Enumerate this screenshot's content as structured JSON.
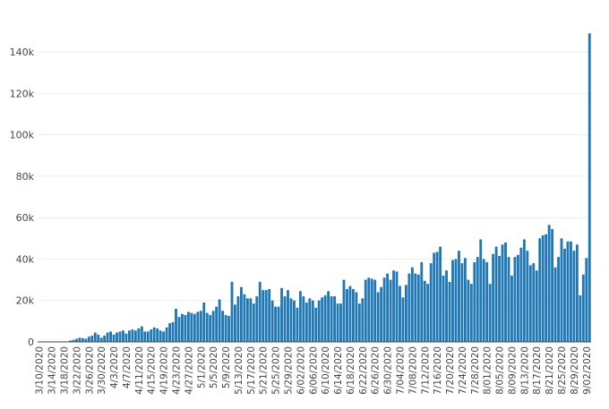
{
  "chart_data": {
    "type": "bar",
    "title": "",
    "xlabel": "",
    "ylabel": "",
    "bar_color": "#1f77b4",
    "ylim": [
      0,
      150000
    ],
    "yticks": [
      0,
      20000,
      40000,
      60000,
      80000,
      100000,
      120000,
      140000
    ],
    "ytick_labels": [
      "0",
      "20k",
      "40k",
      "60k",
      "80k",
      "100k",
      "120k",
      "140k"
    ],
    "grid": true,
    "legend": "none",
    "xtick_labels": [
      "3/10/2020",
      "3/14/2020",
      "3/18/2020",
      "3/22/2020",
      "3/26/2020",
      "3/30/2020",
      "4/3/2020",
      "4/7/2020",
      "4/11/2020",
      "4/15/2020",
      "4/19/2020",
      "4/23/2020",
      "4/27/2020",
      "5/1/2020",
      "5/5/2020",
      "5/9/2020",
      "5/13/2020",
      "5/17/2020",
      "5/21/2020",
      "5/25/2020",
      "5/29/2020",
      "6/02/2020",
      "6/06/2020",
      "6/10/2020",
      "6/14/2020",
      "6/18/2020",
      "6/22/2020",
      "6/26/2020",
      "6/30/2020",
      "7/04/2020",
      "7/08/2020",
      "7/12/2020",
      "7/16/2020",
      "7/20/2020",
      "7/24/2020",
      "7/28/2020",
      "8/01/2020",
      "8/05/2020",
      "8/09/2020",
      "8/13/2020",
      "8/17/2020",
      "8/21/2020",
      "8/25/2020",
      "8/29/2020",
      "9/02/2020"
    ],
    "values": [
      0,
      0,
      0,
      0,
      0,
      0,
      0,
      0,
      0,
      200,
      600,
      1000,
      1500,
      2000,
      1800,
      1500,
      2500,
      3000,
      4500,
      3500,
      2000,
      3000,
      4500,
      5000,
      3500,
      4500,
      5000,
      5500,
      4000,
      5500,
      6000,
      5500,
      6500,
      7500,
      5000,
      5000,
      6000,
      7000,
      6500,
      5500,
      5000,
      7000,
      9000,
      9500,
      16000,
      12000,
      13500,
      13000,
      14500,
      14000,
      13500,
      14500,
      15000,
      19000,
      14000,
      13000,
      15000,
      17000,
      20500,
      15000,
      13000,
      12500,
      29000,
      18000,
      22000,
      26500,
      23000,
      21000,
      21000,
      18500,
      22000,
      29000,
      25000,
      25000,
      25500,
      20000,
      17000,
      17000,
      26000,
      22000,
      25000,
      21000,
      20000,
      16500,
      24500,
      22000,
      19000,
      21000,
      20000,
      16500,
      20000,
      21500,
      22500,
      24500,
      22000,
      22000,
      18500,
      18500,
      30000,
      25500,
      27000,
      25500,
      24000,
      18500,
      21000,
      30000,
      31000,
      30500,
      30000,
      24000,
      26500,
      31000,
      33000,
      30000,
      34500,
      34000,
      27000,
      21500,
      27500,
      33000,
      36000,
      33000,
      32500,
      38500,
      29500,
      28000,
      38000,
      43000,
      43500,
      46000,
      32000,
      34500,
      29000,
      39500,
      40000,
      44000,
      38000,
      40500,
      30000,
      28000,
      38500,
      41000,
      49500,
      40000,
      38500,
      28000,
      42500,
      46000,
      41500,
      47000,
      48000,
      41000,
      32000,
      41000,
      42000,
      45500,
      49500,
      44000,
      37000,
      38000,
      34500,
      50000,
      51500,
      52000,
      56500,
      54500,
      36000,
      41000,
      50000,
      45000,
      48500,
      48500,
      44000,
      47000,
      22500,
      32500,
      40500,
      149000
    ]
  }
}
